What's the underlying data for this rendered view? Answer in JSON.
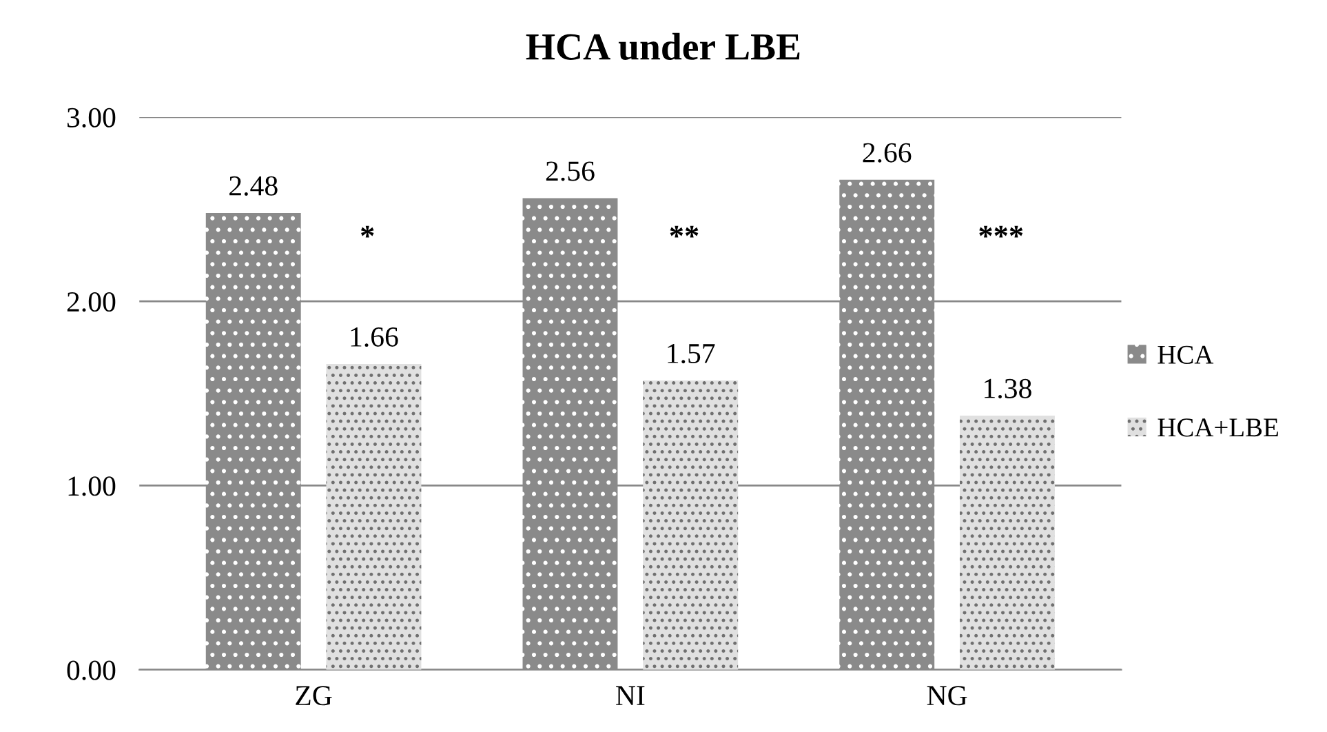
{
  "chart_data": {
    "type": "bar",
    "title": "HCA under LBE",
    "categories": [
      "ZG",
      "NI",
      "NG"
    ],
    "series": [
      {
        "name": "HCA",
        "color": "#8a8a8a",
        "values": [
          2.48,
          2.56,
          2.66
        ]
      },
      {
        "name": "HCA+LBE",
        "color": "#e0e0e0",
        "values": [
          1.66,
          1.57,
          1.38
        ]
      }
    ],
    "ylim": [
      0,
      3
    ],
    "yticks": [
      {
        "value": 0,
        "label": "0.00"
      },
      {
        "value": 1,
        "label": "1.00"
      },
      {
        "value": 2,
        "label": "2.00"
      },
      {
        "value": 3,
        "label": "3.00"
      }
    ],
    "grid": "y",
    "legend": "right",
    "data_labels": true,
    "annotations": [
      "*",
      "**",
      "***"
    ]
  }
}
